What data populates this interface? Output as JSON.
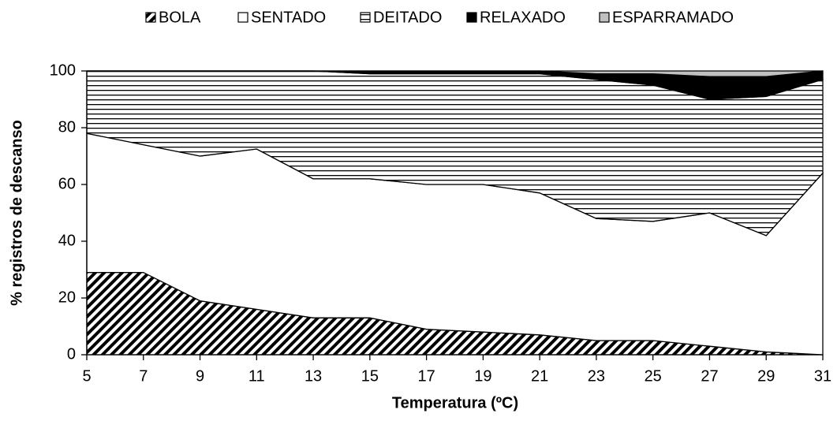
{
  "chart_data": {
    "type": "stacked-area",
    "x": [
      5,
      7,
      9,
      11,
      13,
      15,
      17,
      19,
      21,
      23,
      25,
      27,
      29,
      31
    ],
    "xlim": [
      5,
      31
    ],
    "xticks": [
      5,
      7,
      9,
      11,
      13,
      15,
      17,
      19,
      21,
      23,
      25,
      27,
      29,
      31
    ],
    "ylim": [
      0,
      100
    ],
    "yticks": [
      0,
      20,
      40,
      60,
      80,
      100
    ],
    "x_label": "Temperatura (ºC)",
    "y_label": "% registros de descanso",
    "legend": "top",
    "series": [
      {
        "name": "BOLA",
        "color": "#000000",
        "pattern": "diagonal",
        "values": [
          29,
          29,
          19,
          16,
          13,
          13,
          9,
          8,
          7,
          5,
          5,
          3,
          1,
          0
        ]
      },
      {
        "name": "SENTADO",
        "color": "#ffffff",
        "pattern": "none",
        "values": [
          49,
          45,
          51,
          56.5,
          49,
          49,
          51,
          52,
          50,
          43,
          42,
          47,
          41,
          64
        ]
      },
      {
        "name": "DEITADO",
        "color": "#000000",
        "pattern": "horizontal",
        "values": [
          22,
          26,
          30,
          27.5,
          38,
          37,
          39,
          39,
          42,
          49,
          48,
          40,
          49,
          33
        ]
      },
      {
        "name": "RELAXADO",
        "color": "#000000",
        "pattern": "solid",
        "values": [
          0,
          0,
          0,
          0,
          0,
          1,
          1,
          1,
          1,
          2,
          4,
          8,
          7,
          3
        ]
      },
      {
        "name": "ESPARRAMADO",
        "color": "#c0c0c0",
        "pattern": "solid",
        "values": [
          0,
          0,
          0,
          0,
          0,
          0,
          0,
          0,
          0,
          1,
          1,
          2,
          2,
          0
        ]
      }
    ]
  }
}
